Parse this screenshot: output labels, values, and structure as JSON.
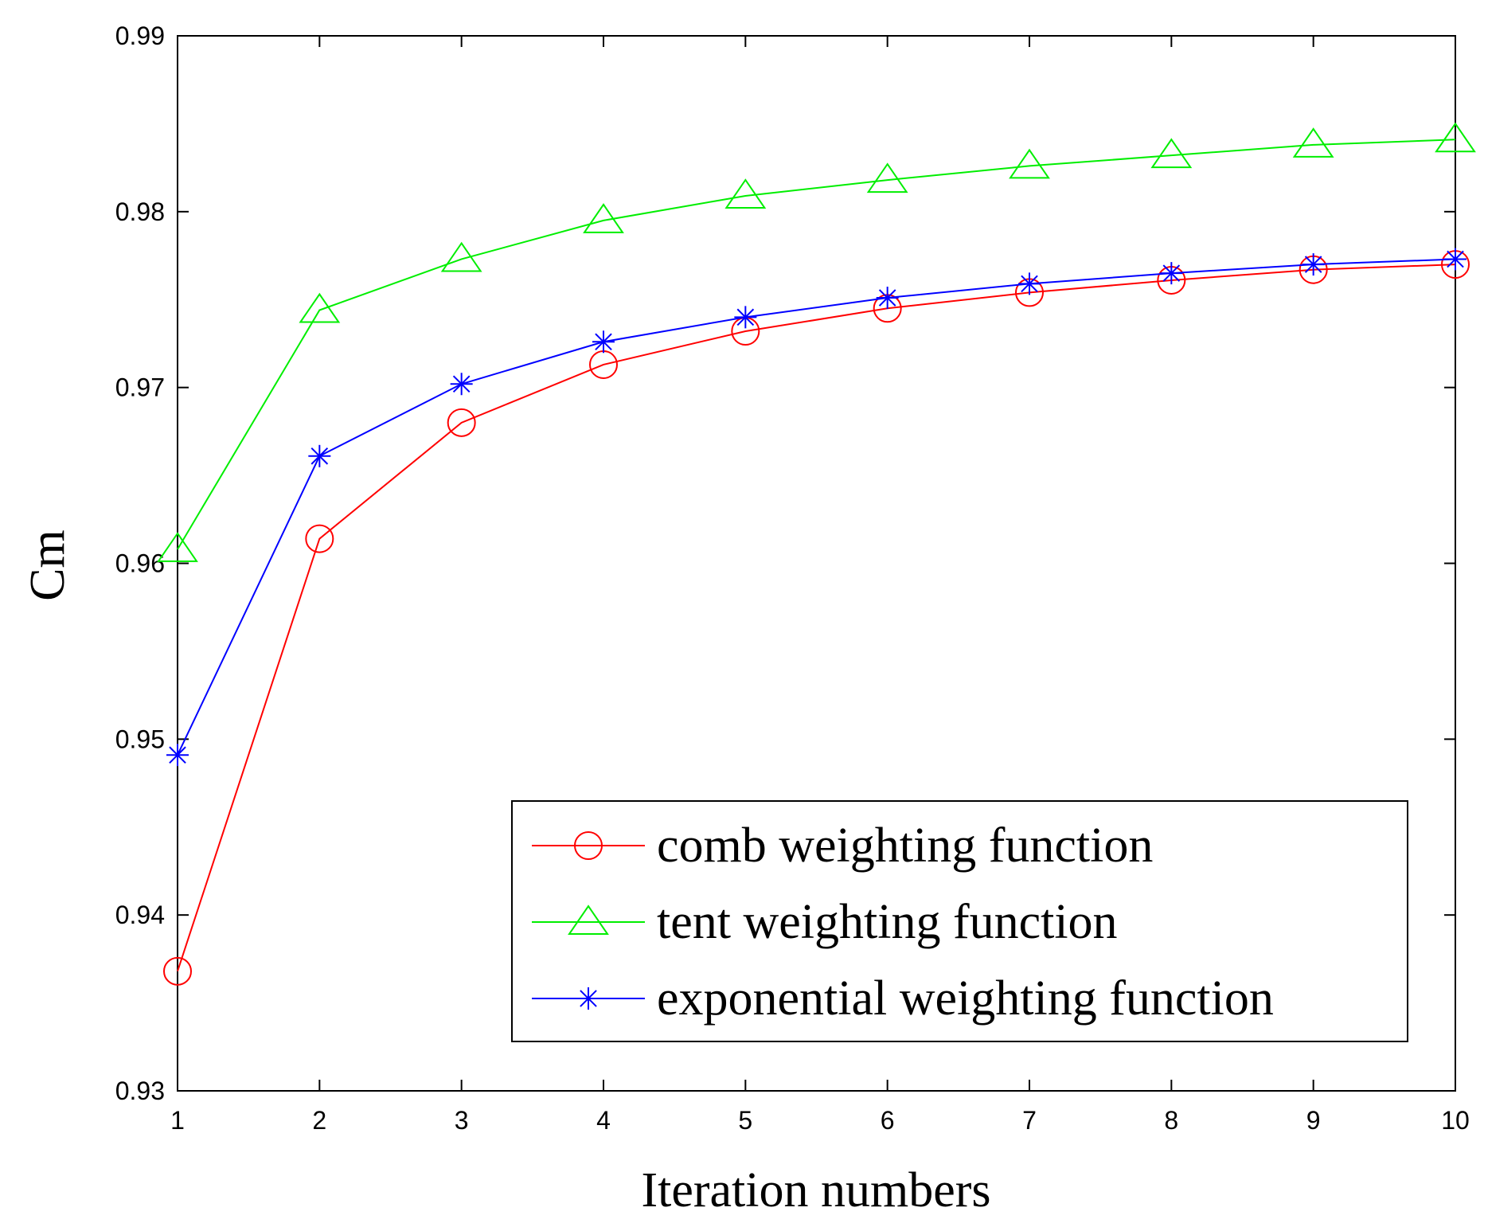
{
  "chart_data": {
    "type": "line",
    "title": "",
    "xlabel": "Iteration numbers",
    "ylabel": "Cm",
    "x": [
      1,
      2,
      3,
      4,
      5,
      6,
      7,
      8,
      9,
      10
    ],
    "xlim": [
      1,
      10
    ],
    "ylim": [
      0.93,
      0.99
    ],
    "xticks": [
      1,
      2,
      3,
      4,
      5,
      6,
      7,
      8,
      9,
      10
    ],
    "yticks": [
      0.93,
      0.94,
      0.95,
      0.96,
      0.97,
      0.98,
      0.99
    ],
    "xtick_labels": [
      "1",
      "2",
      "3",
      "4",
      "5",
      "6",
      "7",
      "8",
      "9",
      "10"
    ],
    "ytick_labels": [
      "0.93",
      "0.94",
      "0.95",
      "0.96",
      "0.97",
      "0.98",
      "0.99"
    ],
    "grid": false,
    "legend_position": "bottom-right",
    "series": [
      {
        "name": "comb weighting function",
        "color": "#ff0000",
        "marker": "circle",
        "values": [
          0.9368,
          0.9614,
          0.968,
          0.9713,
          0.9732,
          0.9745,
          0.9754,
          0.9761,
          0.9767,
          0.977
        ]
      },
      {
        "name": "tent weighting function",
        "color": "#00ee00",
        "marker": "triangle",
        "values": [
          0.9608,
          0.9744,
          0.9773,
          0.9795,
          0.9809,
          0.9818,
          0.9826,
          0.9832,
          0.9838,
          0.9841
        ]
      },
      {
        "name": "exponential weighting function",
        "color": "#0000ff",
        "marker": "asterisk",
        "values": [
          0.9491,
          0.9661,
          0.9702,
          0.9726,
          0.974,
          0.9751,
          0.9759,
          0.9765,
          0.977,
          0.9773
        ]
      }
    ]
  }
}
